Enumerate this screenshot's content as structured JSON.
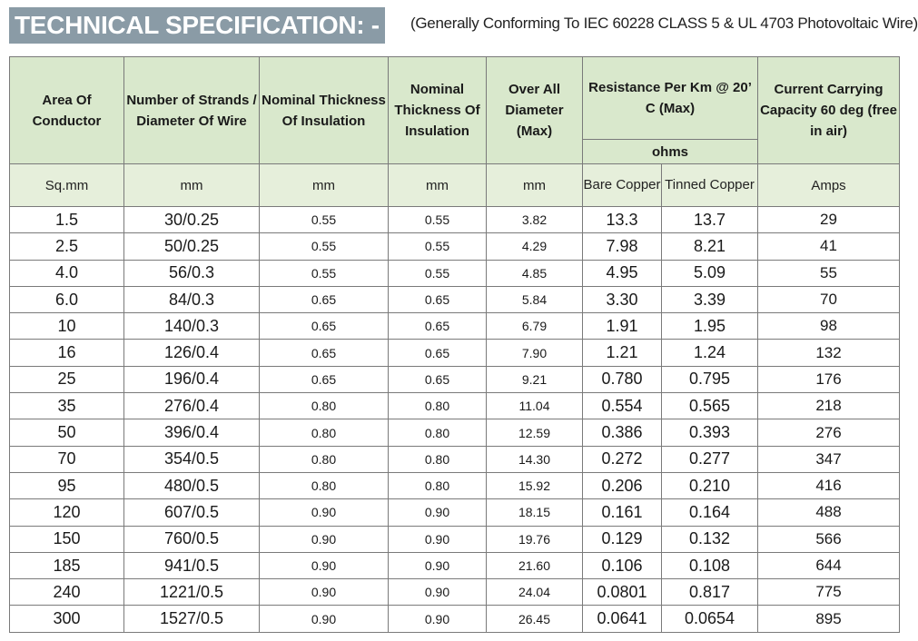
{
  "header": {
    "title": "TECHNICAL SPECIFICATION: -",
    "subtitle": "(Generally Conforming To IEC 60228 CLASS 5 & UL 4703 Photovoltaic Wire)"
  },
  "table": {
    "headers": {
      "area": "Area Of Conductor",
      "strands": "Number of Strands / Diameter Of Wire",
      "thickness1": "Nominal Thickness Of Insulation",
      "thickness2": "Nominal Thickness Of Insulation",
      "diameter": "Over All Diameter (Max)",
      "resistance": "Resistance Per Km @ 20’ C (Max)",
      "ohms": "ohms",
      "current": "Current Carrying Capacity 60 deg (free in air)"
    },
    "units": {
      "area": "Sq.mm",
      "strands": "mm",
      "thickness1": "mm",
      "thickness2": "mm",
      "diameter": "mm",
      "bare_copper": "Bare Copper",
      "tinned_copper": "Tinned Copper",
      "current": "Amps"
    },
    "rows": [
      [
        "1.5",
        "30/0.25",
        "0.55",
        "0.55",
        "3.82",
        "13.3",
        "13.7",
        "29"
      ],
      [
        "2.5",
        "50/0.25",
        "0.55",
        "0.55",
        "4.29",
        "7.98",
        "8.21",
        "41"
      ],
      [
        "4.0",
        "56/0.3",
        "0.55",
        "0.55",
        "4.85",
        "4.95",
        "5.09",
        "55"
      ],
      [
        "6.0",
        "84/0.3",
        "0.65",
        "0.65",
        "5.84",
        "3.30",
        "3.39",
        "70"
      ],
      [
        "10",
        "140/0.3",
        "0.65",
        "0.65",
        "6.79",
        "1.91",
        "1.95",
        "98"
      ],
      [
        "16",
        "126/0.4",
        "0.65",
        "0.65",
        "7.90",
        "1.21",
        "1.24",
        "132"
      ],
      [
        "25",
        "196/0.4",
        "0.65",
        "0.65",
        "9.21",
        "0.780",
        "0.795",
        "176"
      ],
      [
        "35",
        "276/0.4",
        "0.80",
        "0.80",
        "11.04",
        "0.554",
        "0.565",
        "218"
      ],
      [
        "50",
        "396/0.4",
        "0.80",
        "0.80",
        "12.59",
        "0.386",
        "0.393",
        "276"
      ],
      [
        "70",
        "354/0.5",
        "0.80",
        "0.80",
        "14.30",
        "0.272",
        "0.277",
        "347"
      ],
      [
        "95",
        "480/0.5",
        "0.80",
        "0.80",
        "15.92",
        "0.206",
        "0.210",
        "416"
      ],
      [
        "120",
        "607/0.5",
        "0.90",
        "0.90",
        "18.15",
        "0.161",
        "0.164",
        "488"
      ],
      [
        "150",
        "760/0.5",
        "0.90",
        "0.90",
        "19.76",
        "0.129",
        "0.132",
        "566"
      ],
      [
        "185",
        "941/0.5",
        "0.90",
        "0.90",
        "21.60",
        "0.106",
        "0.108",
        "644"
      ],
      [
        "240",
        "1221/0.5",
        "0.90",
        "0.90",
        "24.04",
        "0.0801",
        "0.817",
        "775"
      ],
      [
        "300",
        "1527/0.5",
        "0.90",
        "0.90",
        "26.45",
        "0.0641",
        "0.0654",
        "895"
      ]
    ]
  }
}
